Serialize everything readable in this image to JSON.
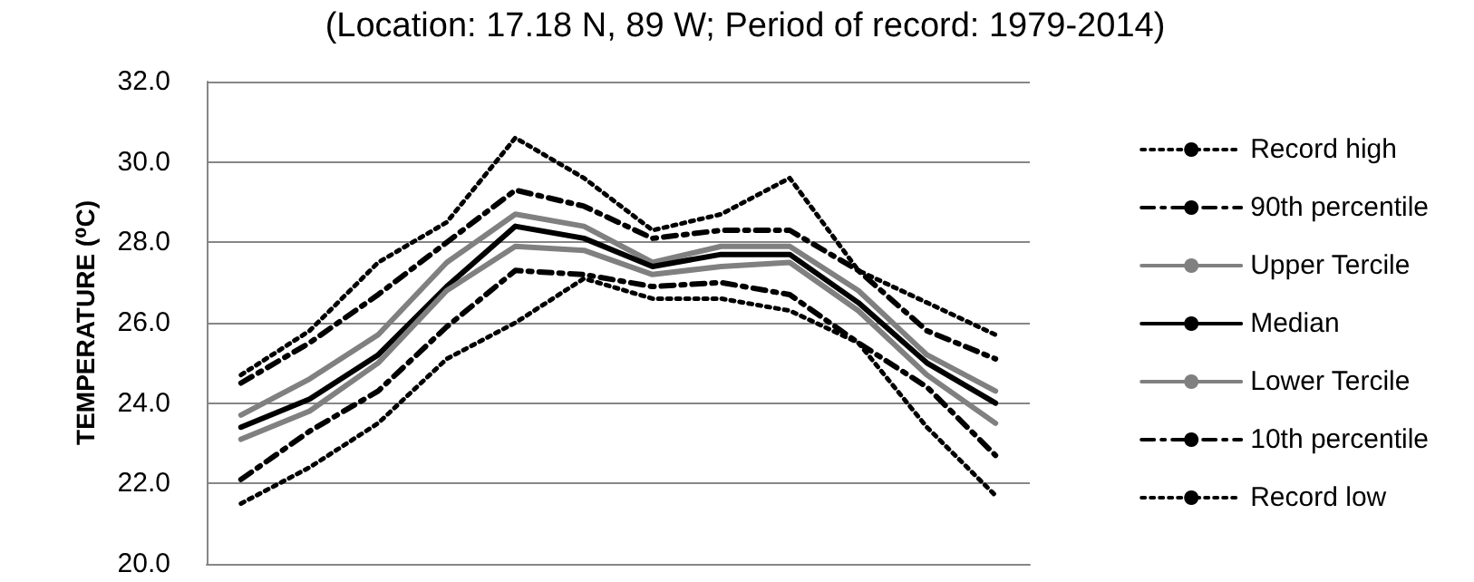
{
  "chart_data": {
    "type": "line",
    "title": "(Location: 17.18 N, 89 W; Period of record: 1979-2014)",
    "ylabel": "TEMPERATURE (⁰C)",
    "categories": [
      null,
      null,
      null,
      null,
      null,
      null,
      null,
      null,
      null,
      null,
      null,
      null
    ],
    "series": [
      {
        "name": "Record high",
        "color": "#000000",
        "line_style": "dotted",
        "values": [
          24.7,
          25.8,
          27.5,
          28.5,
          30.6,
          29.6,
          28.3,
          28.7,
          29.6,
          27.3,
          26.5,
          25.7
        ]
      },
      {
        "name": "90th percentile",
        "color": "#000000",
        "line_style": "dashed",
        "values": [
          24.5,
          25.5,
          26.7,
          28.0,
          29.3,
          28.9,
          28.1,
          28.3,
          28.3,
          27.3,
          25.8,
          25.1
        ]
      },
      {
        "name": "Upper Tercile",
        "color": "#808080",
        "line_style": "solid",
        "values": [
          23.7,
          24.6,
          25.7,
          27.5,
          28.7,
          28.4,
          27.5,
          27.9,
          27.9,
          26.8,
          25.2,
          24.3
        ]
      },
      {
        "name": "Median",
        "color": "#000000",
        "line_style": "solid",
        "values": [
          23.4,
          24.1,
          25.2,
          26.9,
          28.4,
          28.1,
          27.4,
          27.7,
          27.7,
          26.5,
          25.0,
          24.0
        ]
      },
      {
        "name": "Lower Tercile",
        "color": "#808080",
        "line_style": "solid",
        "values": [
          23.1,
          23.8,
          25.0,
          26.8,
          27.9,
          27.8,
          27.2,
          27.4,
          27.5,
          26.3,
          24.7,
          23.5
        ]
      },
      {
        "name": "10th percentile",
        "color": "#000000",
        "line_style": "dashed",
        "values": [
          22.1,
          23.3,
          24.3,
          25.9,
          27.3,
          27.2,
          26.9,
          27.0,
          26.7,
          25.5,
          24.4,
          22.7
        ]
      },
      {
        "name": "Record low",
        "color": "#000000",
        "line_style": "dotted",
        "values": [
          21.5,
          22.4,
          23.5,
          25.1,
          26.0,
          27.1,
          26.6,
          26.6,
          26.3,
          25.5,
          23.4,
          21.7
        ]
      }
    ],
    "ylim": [
      20,
      32
    ],
    "yticks": [
      {
        "value": 20,
        "label": "20.0"
      },
      {
        "value": 22,
        "label": "22.0"
      },
      {
        "value": 24,
        "label": "24.0"
      },
      {
        "value": 26,
        "label": "26.0"
      },
      {
        "value": 28,
        "label": "28.0"
      },
      {
        "value": 30,
        "label": "30.0"
      },
      {
        "value": 32,
        "label": "32.0"
      }
    ],
    "grid": "y",
    "legend": "right",
    "marker": "none"
  }
}
